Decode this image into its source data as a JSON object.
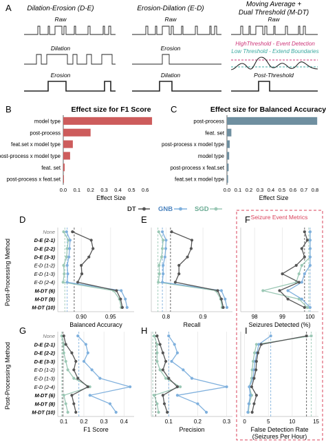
{
  "section_a": {
    "letter": "A",
    "col1_title": "Dilation-Erosion (D-E)",
    "col2_title": "Erosion-Dilation (E-D)",
    "col3_title_line1": "Moving Average +",
    "col3_title_line2": "Dual Threshold (M-DT)",
    "raw": "Raw",
    "dilation": "Dilation",
    "erosion": "Erosion",
    "high_threshold": "HighThreshold - Event Detection",
    "low_threshold": "Low Threshold - Extend Boundaries",
    "post_threshold": "Post-Threshold",
    "colors": {
      "high": "#cc3377",
      "low": "#3aa9a0"
    }
  },
  "legend": {
    "dt": "DT",
    "gnb": "GNB",
    "sgd": "SGD",
    "colors": {
      "dt": "#555555",
      "gnb": "#7fb0dd",
      "sgd": "#9bc8b5"
    }
  },
  "seizure_box_title": "Seizure Event Metrics",
  "row_axis_title": "Post-Processing Method",
  "methods": [
    "None",
    "D-E (2-1)",
    "D-E (2-2)",
    "D-E (3-3)",
    "E-D (1-2)",
    "E-D (1-3)",
    "E-D (2-4)",
    "M-DT (6)",
    "M-DT (8)",
    "M-DT (10)"
  ],
  "chart_data": [
    {
      "panel": "B",
      "type": "bar",
      "orientation": "horizontal",
      "title": "Effect size for F1 Score",
      "categories": [
        "model type",
        "post-process",
        "feat.set x model type",
        "post-process x model type",
        "feat. set",
        "post-process x feat.set"
      ],
      "values": [
        0.65,
        0.2,
        0.07,
        0.05,
        0.01,
        0.005
      ],
      "xlabel": "Effect Size",
      "xlim": [
        0,
        0.7
      ],
      "xticks": [
        "0.0",
        "0.1",
        "0.2",
        "0.3",
        "0.4",
        "0.5",
        "0.6"
      ],
      "color": "#cd5c5c"
    },
    {
      "panel": "C",
      "type": "bar",
      "orientation": "horizontal",
      "title": "Effect size for Balanced Accuracy",
      "categories": [
        "post-process",
        "feat. set",
        "post-process x model type",
        "model type",
        "post-process x feat.set",
        "feat.set x model type"
      ],
      "values": [
        0.82,
        0.04,
        0.025,
        0.02,
        0.015,
        0.01
      ],
      "xlabel": "Effect Size",
      "xlim": [
        0,
        0.85
      ],
      "xticks": [
        "0.0",
        "0.1",
        "0.2",
        "0.3",
        "0.4",
        "0.5",
        "0.6",
        "0.7",
        "0.8"
      ],
      "color": "#6f8fa0"
    },
    {
      "panel": "D",
      "type": "line",
      "xlabel": "Balanced Accuracy",
      "xlim": [
        0.86,
        0.99
      ],
      "xticks": [
        {
          "v": 0.9,
          "l": "0.90"
        },
        {
          "v": 0.95,
          "l": "0.95"
        }
      ],
      "series": [
        {
          "name": "DT",
          "values": [
            0.885,
            0.917,
            0.92,
            0.913,
            0.9,
            0.901,
            0.894,
            0.96,
            0.967,
            0.97
          ]
        },
        {
          "name": "GNB",
          "values": [
            0.875,
            0.881,
            0.88,
            0.879,
            0.876,
            0.877,
            0.876,
            0.968,
            0.975,
            0.978
          ]
        },
        {
          "name": "SGD",
          "values": [
            0.87,
            0.878,
            0.876,
            0.875,
            0.87,
            0.871,
            0.869,
            0.955,
            0.965,
            0.968
          ]
        }
      ],
      "refs": [
        {
          "v": 0.888,
          "s": "DT"
        },
        {
          "v": 0.876,
          "s": "GNB"
        },
        {
          "v": 0.872,
          "s": "SGD"
        }
      ]
    },
    {
      "panel": "E",
      "type": "line",
      "xlabel": "Recall",
      "xlim": [
        0.76,
        0.98
      ],
      "xticks": [
        {
          "v": 0.8,
          "l": "0.8"
        },
        {
          "v": 0.9,
          "l": "0.9"
        }
      ],
      "series": [
        {
          "name": "DT",
          "values": [
            0.815,
            0.87,
            0.868,
            0.858,
            0.835,
            0.835,
            0.825,
            0.94,
            0.95,
            0.955
          ]
        },
        {
          "name": "GNB",
          "values": [
            0.79,
            0.8,
            0.799,
            0.797,
            0.792,
            0.792,
            0.79,
            0.95,
            0.96,
            0.965
          ]
        },
        {
          "name": "SGD",
          "values": [
            0.78,
            0.792,
            0.79,
            0.788,
            0.781,
            0.782,
            0.779,
            0.935,
            0.948,
            0.952
          ]
        }
      ],
      "refs": [
        {
          "v": 0.812,
          "s": "DT"
        },
        {
          "v": 0.79,
          "s": "GNB"
        },
        {
          "v": 0.778,
          "s": "SGD"
        }
      ]
    },
    {
      "panel": "F",
      "type": "line",
      "xlabel": "Seizures Detected (%)",
      "xlim": [
        97.5,
        100.3
      ],
      "xticks": [
        {
          "v": 98,
          "l": "98"
        },
        {
          "v": 99,
          "l": "99"
        },
        {
          "v": 100,
          "l": "100"
        }
      ],
      "series": [
        {
          "name": "DT",
          "values": [
            99.8,
            99.9,
            99.7,
            99.8,
            99.5,
            99.0,
            99.6,
            98.9,
            99.2,
            99.8
          ]
        },
        {
          "name": "GNB",
          "values": [
            100,
            100,
            100,
            100,
            100,
            99.8,
            99.7,
            99.2,
            99.7,
            100
          ]
        },
        {
          "name": "SGD",
          "values": [
            100,
            100,
            100,
            100,
            99.7,
            99.6,
            99.5,
            98.3,
            99.6,
            99.9
          ]
        }
      ],
      "refs": [
        {
          "v": 99.8,
          "s": "DT"
        },
        {
          "v": 100,
          "s": "GNB"
        },
        {
          "v": 99.95,
          "s": "SGD"
        }
      ]
    },
    {
      "panel": "G",
      "type": "line",
      "xlabel": "F1 Score",
      "xlim": [
        0.07,
        0.45
      ],
      "xticks": [
        {
          "v": 0.1,
          "l": "0.1"
        },
        {
          "v": 0.2,
          "l": "0.2"
        },
        {
          "v": 0.3,
          "l": "0.3"
        },
        {
          "v": 0.4,
          "l": "0.4"
        }
      ],
      "series": [
        {
          "name": "DT",
          "values": [
            0.1,
            0.11,
            0.14,
            0.16,
            0.15,
            0.17,
            0.22,
            0.14,
            0.15,
            0.16
          ]
        },
        {
          "name": "GNB",
          "values": [
            0.17,
            0.21,
            0.22,
            0.2,
            0.24,
            0.28,
            0.43,
            0.23,
            0.33,
            0.36
          ]
        },
        {
          "name": "SGD",
          "values": [
            0.09,
            0.1,
            0.1,
            0.11,
            0.12,
            0.15,
            0.23,
            0.1,
            0.11,
            0.12
          ]
        }
      ],
      "refs": [
        {
          "v": 0.095,
          "s": "DT"
        },
        {
          "v": 0.175,
          "s": "GNB"
        },
        {
          "v": 0.09,
          "s": "SGD"
        }
      ]
    },
    {
      "panel": "H",
      "type": "line",
      "xlabel": "Precision",
      "xlim": [
        0.04,
        0.32
      ],
      "xticks": [
        {
          "v": 0.1,
          "l": "0.1"
        },
        {
          "v": 0.2,
          "l": "0.2"
        },
        {
          "v": 0.3,
          "l": "0.3"
        }
      ],
      "series": [
        {
          "name": "DT",
          "values": [
            0.06,
            0.07,
            0.08,
            0.09,
            0.08,
            0.1,
            0.13,
            0.08,
            0.085,
            0.095
          ]
        },
        {
          "name": "GNB",
          "values": [
            0.1,
            0.12,
            0.13,
            0.11,
            0.15,
            0.18,
            0.3,
            0.13,
            0.2,
            0.23
          ]
        },
        {
          "name": "SGD",
          "values": [
            0.05,
            0.06,
            0.06,
            0.06,
            0.07,
            0.09,
            0.14,
            0.05,
            0.06,
            0.065
          ]
        }
      ],
      "refs": [
        {
          "v": 0.055,
          "s": "DT"
        },
        {
          "v": 0.1,
          "s": "GNB"
        },
        {
          "v": 0.045,
          "s": "SGD"
        }
      ]
    },
    {
      "panel": "I",
      "type": "line",
      "xlabel": "False Detection Rate",
      "xlabel2": "(Seizures Per Hour)",
      "xlim": [
        -0.8,
        15.5
      ],
      "xticks": [
        {
          "v": 0,
          "l": "0"
        },
        {
          "v": 5,
          "l": "5"
        },
        {
          "v": 10,
          "l": "10"
        },
        {
          "v": 15,
          "l": "15"
        }
      ],
      "series": [
        {
          "name": "DT",
          "values": [
            13.0,
            3.5,
            2.8,
            2.5,
            2.4,
            2.0,
            1.5,
            2.5,
            2.0,
            1.6
          ]
        },
        {
          "name": "GNB",
          "values": [
            5.5,
            3.0,
            2.6,
            2.2,
            2.0,
            1.8,
            1.0,
            1.2,
            0.9,
            0.7
          ]
        },
        {
          "name": "SGD",
          "values": [
            14.0,
            2.5,
            2.1,
            1.8,
            1.6,
            1.5,
            1.0,
            1.5,
            1.0,
            0.8
          ]
        }
      ],
      "refs": [
        {
          "v": 13.0,
          "s": "DT"
        },
        {
          "v": 5.5,
          "s": "GNB"
        },
        {
          "v": 14.0,
          "s": "SGD"
        }
      ]
    }
  ]
}
